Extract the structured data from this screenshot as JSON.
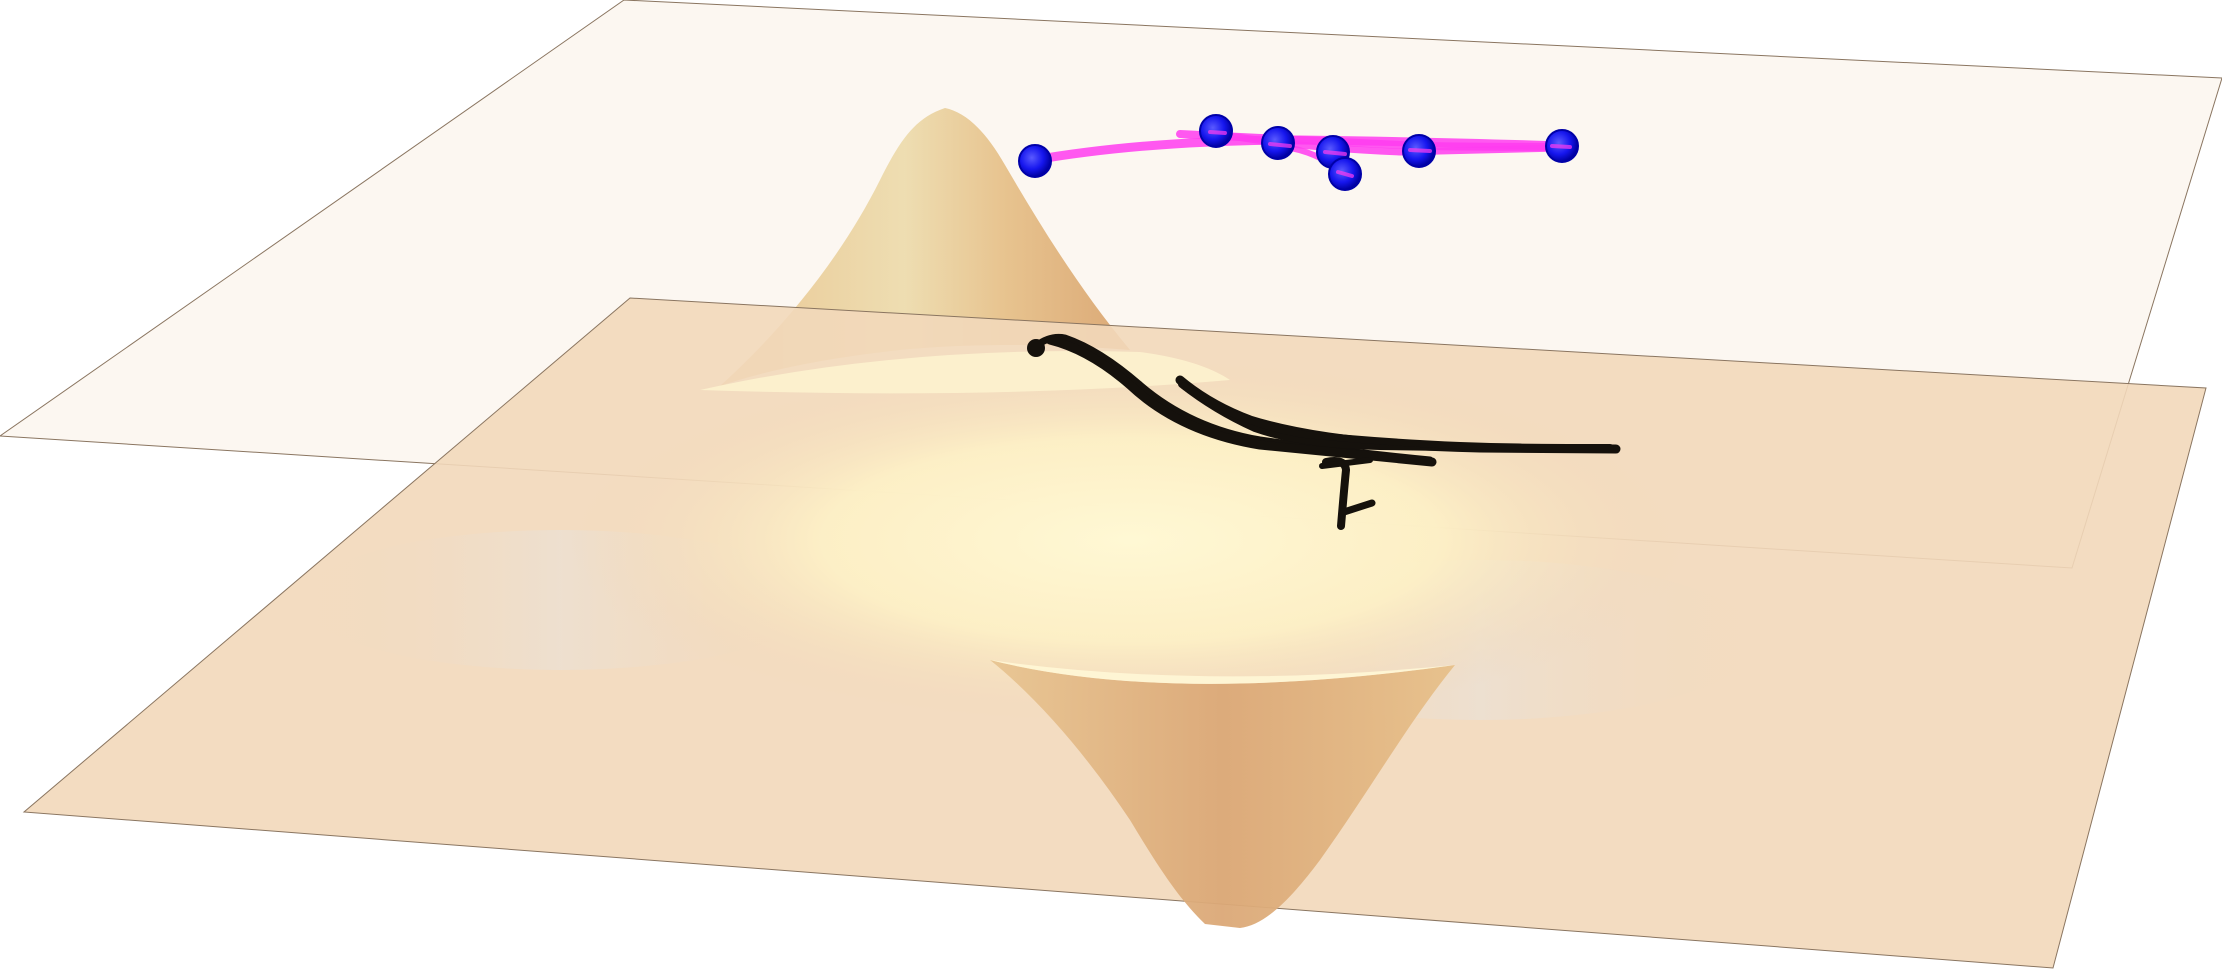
{
  "scene": {
    "description_kind": "3d-surface-render",
    "colors": {
      "background": "#ffffff",
      "plane_fill": "#f2d7b8",
      "plane_edge": "#8a7560",
      "surface_light": "#fff6d0",
      "surface_mid": "#f3dcae",
      "surface_dark": "#dca874",
      "trajectory_pink": "#ff3cf0",
      "marker_blue": "#1a1aff",
      "marker_blue_edge": "#0000a8",
      "trajectory_black": "#15110c"
    },
    "icons": {
      "marker": "sphere-marker",
      "trajectory_end": "dot-marker"
    }
  }
}
